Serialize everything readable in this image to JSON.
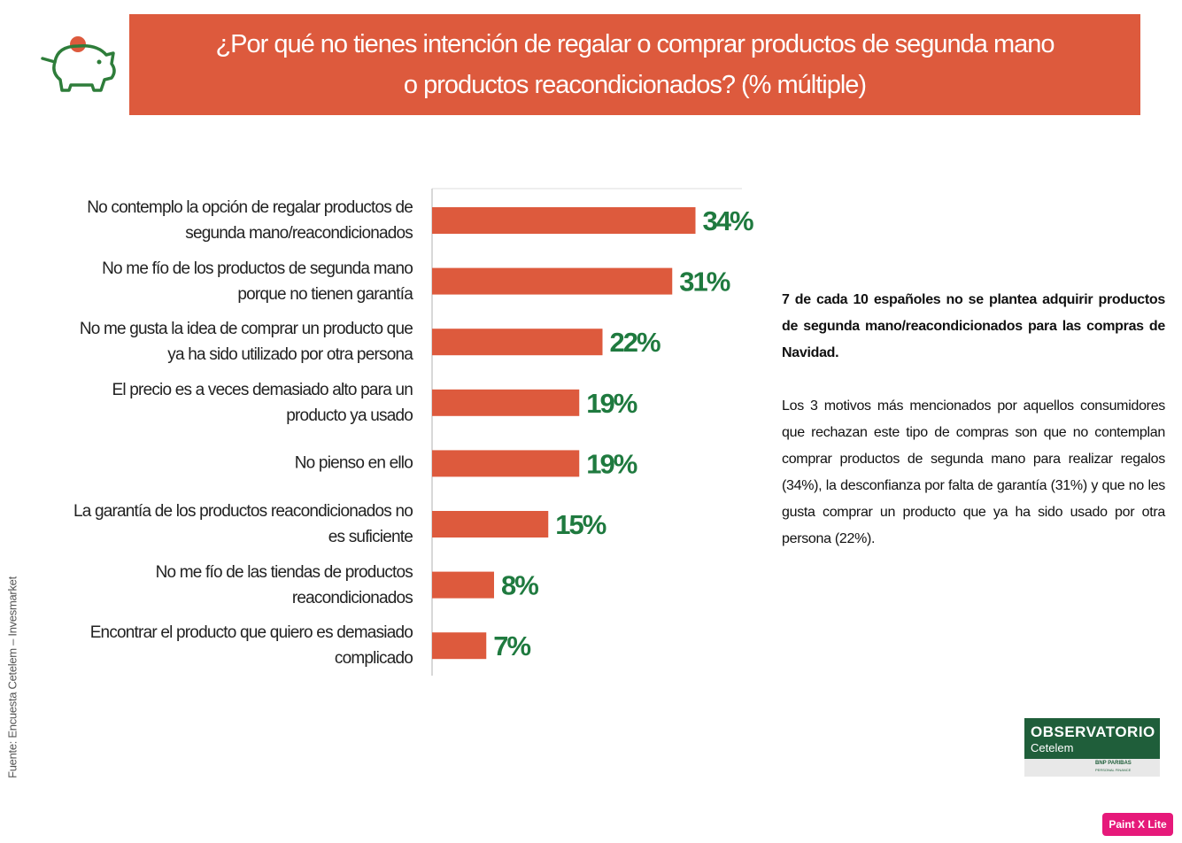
{
  "chart_data": {
    "type": "barh",
    "title": "¿Por qué no tienes intención de regalar o comprar productos de segunda mano o productos reacondicionados? (% múltiple)",
    "categories": [
      "No contemplo la opción de regalar productos de segunda mano/reacondicionados",
      "No me fío de los productos de segunda mano porque no tienen garantía",
      "No me gusta la idea de comprar un producto que ya ha sido utilizado por otra persona",
      "El precio es a veces demasiado alto para un producto ya usado",
      "No pienso en ello",
      "La garantía de los productos reacondicionados no es suficiente",
      "No me fío de las tiendas de productos reacondicionados",
      "Encontrar el producto que quiero es demasiado complicado"
    ],
    "values": [
      34,
      31,
      22,
      19,
      19,
      15,
      8,
      7
    ],
    "value_labels": [
      "34%",
      "31%",
      "22%",
      "19%",
      "19%",
      "15%",
      "8%",
      "7%"
    ],
    "color": "#dd5a3d",
    "label_color": "#1f7a3f",
    "xlim": [
      0,
      40
    ]
  },
  "sidebar": {
    "headline": "7 de cada 10 españoles no se plantea adquirir productos de segunda mano/reacondicionados para las compras de Navidad.",
    "body": "Los 3 motivos más mencionados por aquellos consumidores que rechazan este tipo de compras son que no contemplan comprar productos de segunda mano para realizar regalos (34%), la desconfianza por falta de garantía (31%) y que no les gusta comprar un producto que ya ha sido usado por otra persona (22%)."
  },
  "source": "Fuente: Encuesta Cetelem – Invesmarket",
  "logo": {
    "name": "OBSERVATORIO",
    "brand": "Cetelem",
    "bank": "BNP PARIBAS",
    "division": "PERSONAL FINANCE"
  },
  "badge": "Paint X Lite"
}
